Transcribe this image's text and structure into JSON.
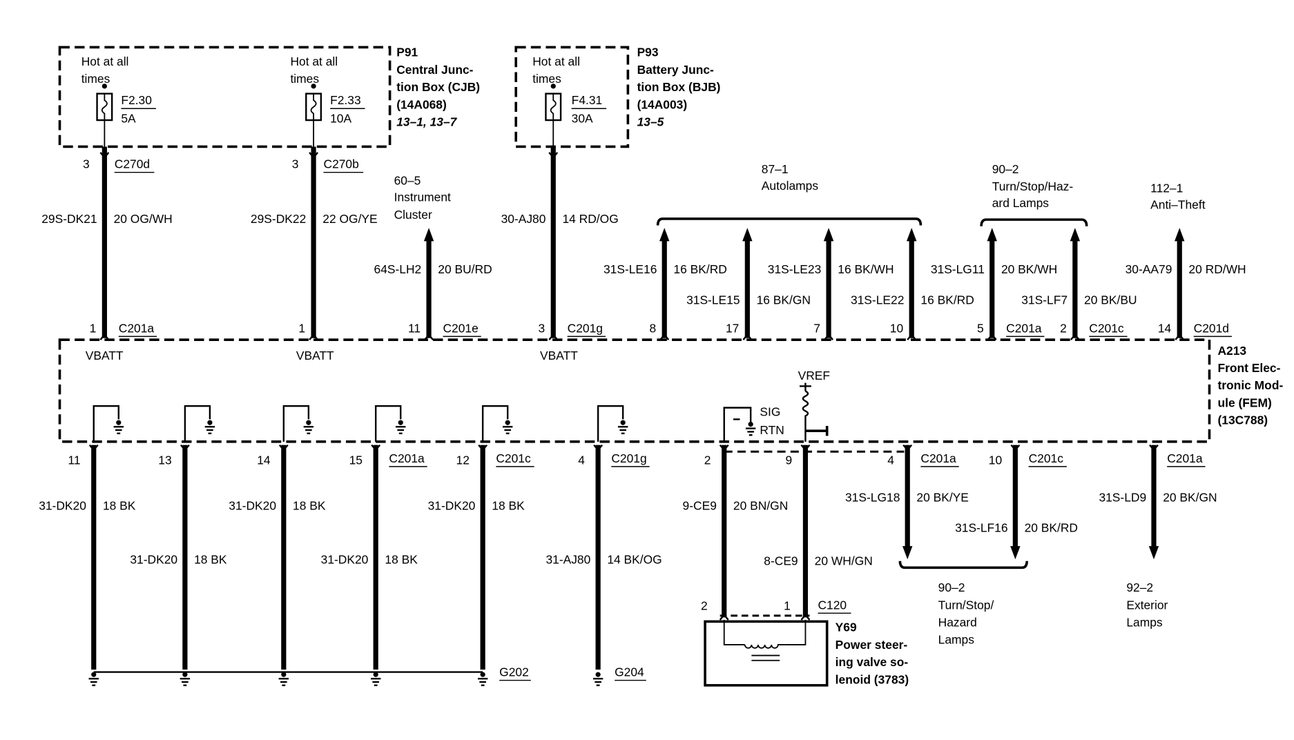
{
  "p91": {
    "id": "P91",
    "name": [
      "Central Junc-",
      "tion Box (CJB)"
    ],
    "part": "(14A068)",
    "ref": "13–1, 13–7",
    "fuses": [
      {
        "hot": [
          "Hot at all",
          "times"
        ],
        "id": "F2.30",
        "rating": "5A"
      },
      {
        "hot": [
          "Hot at all",
          "times"
        ],
        "id": "F2.33",
        "rating": "10A"
      }
    ]
  },
  "p93": {
    "id": "P93",
    "name": [
      "Battery Junc-",
      "tion Box (BJB)"
    ],
    "part": "(14A003)",
    "ref": "13–5",
    "fuses": [
      {
        "hot": [
          "Hot at all",
          "times"
        ],
        "id": "F4.31",
        "rating": "30A"
      }
    ]
  },
  "a213": {
    "id": "A213",
    "name": [
      "Front Elec-",
      "tronic Mod-",
      "ule (FEM)"
    ],
    "part": "(13C788)",
    "vbatt": "VBATT",
    "vref": "VREF",
    "sig": "SIG",
    "rtn": "RTN"
  },
  "y69": {
    "id": "Y69",
    "name": [
      "Power steer-",
      "ing valve so-",
      "lenoid (3783)"
    ],
    "connector": "C120",
    "pins": [
      "2",
      "1"
    ]
  },
  "grounds": [
    "G202",
    "G204"
  ],
  "destinations": {
    "instrument": [
      "60–5",
      "Instrument",
      "Cluster"
    ],
    "autolamps": [
      "87–1",
      "Autolamps"
    ],
    "turn_top": [
      "90–2",
      "Turn/Stop/Haz-",
      "ard Lamps"
    ],
    "anti_theft": [
      "112–1",
      "Anti–Theft"
    ],
    "turn_bottom": [
      "90–2",
      "Turn/Stop/",
      "Hazard",
      "Lamps"
    ],
    "exterior": [
      "92–2",
      "Exterior",
      "Lamps"
    ]
  },
  "wires_top": [
    {
      "circuit": "29S-DK21",
      "color": "20 OG/WH",
      "src_pin": "3",
      "src_conn": "C270d",
      "pin": "1",
      "conn": "C201a"
    },
    {
      "circuit": "29S-DK22",
      "color": "22 OG/YE",
      "src_pin": "3",
      "src_conn": "C270b",
      "pin": "1",
      "conn": ""
    },
    {
      "circuit": "64S-LH2",
      "color": "20 BU/RD",
      "pin": "11",
      "conn": "C201e"
    },
    {
      "circuit": "30-AJ80",
      "color": "14 RD/OG",
      "pin": "3",
      "conn": "C201g"
    },
    {
      "circuit": "31S-LE16",
      "color": "16 BK/RD",
      "pin": "8",
      "conn": ""
    },
    {
      "circuit": "31S-LE15",
      "color": "16 BK/GN",
      "pin": "17",
      "conn": ""
    },
    {
      "circuit": "31S-LE23",
      "color": "16 BK/WH",
      "pin": "7",
      "conn": ""
    },
    {
      "circuit": "31S-LE22",
      "color": "16 BK/RD",
      "pin": "10",
      "conn": ""
    },
    {
      "circuit": "31S-LG11",
      "color": "20 BK/WH",
      "pin": "5",
      "conn": "C201a"
    },
    {
      "circuit": "31S-LF7",
      "color": "20 BK/BU",
      "pin": "2",
      "conn": "C201c"
    },
    {
      "circuit": "30-AA79",
      "color": "20 RD/WH",
      "pin": "14",
      "conn": "C201d"
    }
  ],
  "wires_bottom": [
    {
      "circuit": "31-DK20",
      "color": "18 BK",
      "pin": "11",
      "conn": ""
    },
    {
      "circuit": "31-DK20",
      "color": "18 BK",
      "pin": "13",
      "conn": ""
    },
    {
      "circuit": "31-DK20",
      "color": "18 BK",
      "pin": "14",
      "conn": ""
    },
    {
      "circuit": "31-DK20",
      "color": "18 BK",
      "pin": "15",
      "conn": "C201a"
    },
    {
      "circuit": "31-DK20",
      "color": "18 BK",
      "pin": "12",
      "conn": "C201c"
    },
    {
      "circuit": "31-AJ80",
      "color": "14 BK/OG",
      "pin": "4",
      "conn": "C201g"
    },
    {
      "circuit": "9-CE9",
      "color": "20 BN/GN",
      "pin": "2",
      "conn": ""
    },
    {
      "circuit": "8-CE9",
      "color": "20 WH/GN",
      "pin": "9",
      "conn": ""
    },
    {
      "circuit": "31S-LG18",
      "color": "20 BK/YE",
      "pin": "4",
      "conn": "C201a"
    },
    {
      "circuit": "31S-LF16",
      "color": "20 BK/RD",
      "pin": "10",
      "conn": "C201c"
    },
    {
      "circuit": "31S-LD9",
      "color": "20 BK/GN",
      "pin": "",
      "conn": "C201a"
    }
  ]
}
